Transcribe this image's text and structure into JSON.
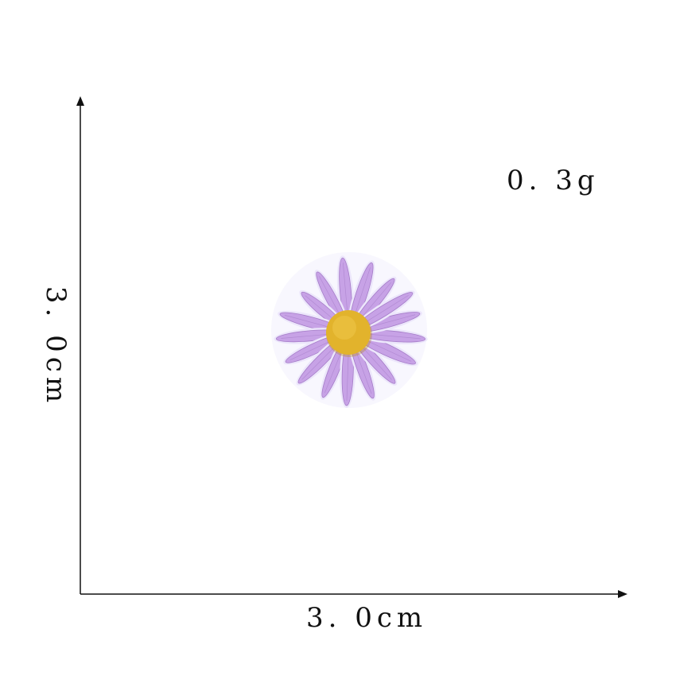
{
  "product": {
    "name_icon": "purple-daisy-patch",
    "petal_color": "#c7a2e6",
    "petal_shadow_color": "#a57cc8",
    "center_color": "#e2b32c",
    "halo_color": "#ece6fb"
  },
  "specs": {
    "weight": "0. 3g",
    "width": "3. 0cm",
    "height": "3. 0cm"
  },
  "colors": {
    "axis": "#111111",
    "background": "#ffffff"
  }
}
